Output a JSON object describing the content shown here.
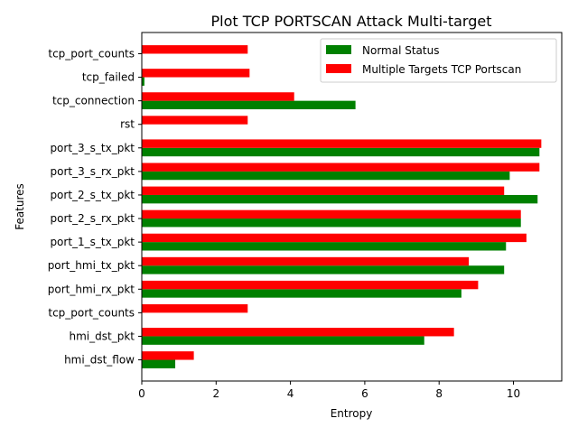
{
  "colors": {
    "series_1": "#008000",
    "series_2": "#ff0000"
  },
  "chart_data": {
    "type": "bar",
    "orientation": "horizontal",
    "title": "Plot TCP PORTSCAN Attack Multi-target",
    "xlabel": "Entropy",
    "ylabel": "Features",
    "xlim": [
      0,
      11.3
    ],
    "xticks": [
      0,
      2,
      4,
      6,
      8,
      10
    ],
    "grid": false,
    "legend_position": "top-right",
    "categories": [
      "hmi_dst_flow",
      "hmi_dst_pkt",
      "tcp_port_counts",
      "port_hmi_rx_pkt",
      "port_hmi_tx_pkt",
      "port_1_s_tx_pkt",
      "port_2_s_rx_pkt",
      "port_2_s_tx_pkt",
      "port_3_s_rx_pkt",
      "port_3_s_tx_pkt",
      "rst",
      "tcp_connection",
      "tcp_failed",
      "tcp_port_counts"
    ],
    "series": [
      {
        "name": "Normal Status",
        "values": [
          0.9,
          7.6,
          0.0,
          8.6,
          9.75,
          9.8,
          10.2,
          10.65,
          9.9,
          10.7,
          0.0,
          5.75,
          0.07,
          0.0
        ]
      },
      {
        "name": "Multiple Targets TCP Portscan",
        "values": [
          1.4,
          8.4,
          2.85,
          9.05,
          8.8,
          10.35,
          10.2,
          9.75,
          10.7,
          10.75,
          2.85,
          4.1,
          2.9,
          2.85
        ]
      }
    ]
  }
}
